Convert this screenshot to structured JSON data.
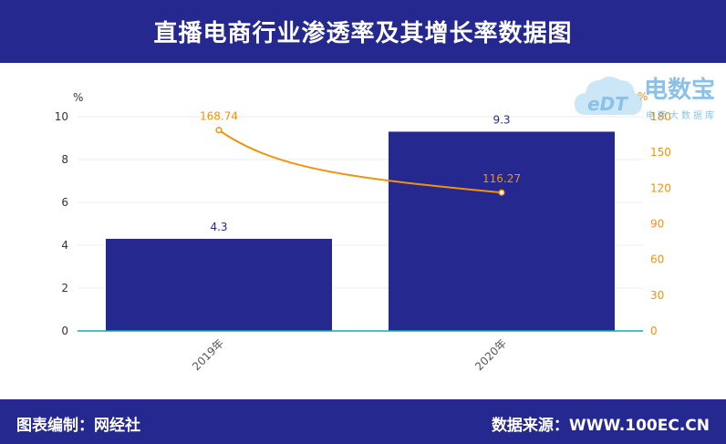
{
  "header": {
    "title": "直播电商行业渗透率及其增长率数据图"
  },
  "footer": {
    "left": "图表编制：网经社",
    "right": "数据来源：WWW.100EC.CN"
  },
  "watermark": {
    "title": "电数宝",
    "subtitle": "电商大数据库",
    "logo_text": "eDT"
  },
  "colors": {
    "header_bg": "#24288f",
    "bar": "#24288f",
    "line": "#f2920c",
    "axis_right": "#f2920c",
    "baseline": "#17a9b8"
  },
  "chart_data": {
    "type": "bar",
    "categories": [
      "2019年",
      "2020年"
    ],
    "series": [
      {
        "type": "bar",
        "axis": "left",
        "values": [
          4.3,
          9.3
        ],
        "labels": [
          "4.3",
          "9.3"
        ]
      },
      {
        "type": "line",
        "axis": "right",
        "values": [
          168.74,
          116.27
        ],
        "labels": [
          "168.74",
          "116.27"
        ]
      }
    ],
    "y_left": {
      "unit": "%",
      "min": 0,
      "max": 10,
      "ticks": [
        "0",
        "2",
        "4",
        "6",
        "8",
        "10"
      ]
    },
    "y_right": {
      "unit": "%",
      "min": 0,
      "max": 180,
      "ticks": [
        "0",
        "30",
        "60",
        "90",
        "120",
        "150",
        "180"
      ]
    },
    "grid": true
  }
}
